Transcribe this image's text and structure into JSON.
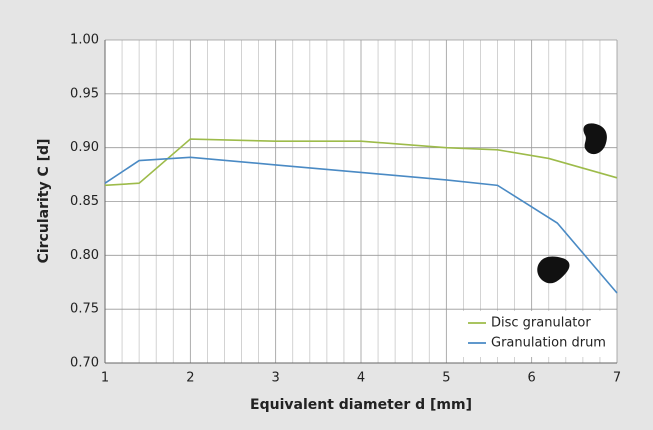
{
  "chart_data": {
    "type": "line",
    "x_label": "Equivalent diameter d [mm]",
    "y_label": "Circularity C [d]",
    "xlim": [
      1,
      7
    ],
    "ylim": [
      0.7,
      1.0
    ],
    "xticks": [
      1,
      2,
      3,
      4,
      5,
      6,
      7
    ],
    "minor_xgrid": [
      1.2,
      1.4,
      1.6,
      1.8,
      2.2,
      2.4,
      2.6,
      2.8,
      3.2,
      3.4,
      3.6,
      3.8,
      4.2,
      4.4,
      4.6,
      4.8,
      5.2,
      5.4,
      5.6,
      5.8,
      6.2,
      6.4,
      6.6,
      6.8
    ],
    "yticks": [
      {
        "value": 0.7,
        "label": "0.70"
      },
      {
        "value": 0.75,
        "label": "0.75"
      },
      {
        "value": 0.8,
        "label": "0.80"
      },
      {
        "value": 0.85,
        "label": "0.85"
      },
      {
        "value": 0.9,
        "label": "0.90"
      },
      {
        "value": 0.95,
        "label": "0.95"
      },
      {
        "value": 1.0,
        "label": "1.00"
      }
    ],
    "grid": true,
    "legend": "lower right",
    "series": [
      {
        "name": "Disc granulator",
        "color": "#9dbb4a",
        "x": [
          1,
          1.4,
          2,
          3,
          4,
          5,
          5.6,
          6.2,
          7
        ],
        "values": [
          0.865,
          0.867,
          0.908,
          0.906,
          0.906,
          0.9,
          0.898,
          0.89,
          0.872
        ]
      },
      {
        "name": "Granulation drum",
        "color": "#4a8ac4",
        "x": [
          1,
          1.4,
          2,
          3,
          4,
          5,
          5.6,
          6.3,
          7
        ],
        "values": [
          0.867,
          0.888,
          0.891,
          0.884,
          0.877,
          0.87,
          0.865,
          0.83,
          0.765
        ]
      }
    ]
  }
}
